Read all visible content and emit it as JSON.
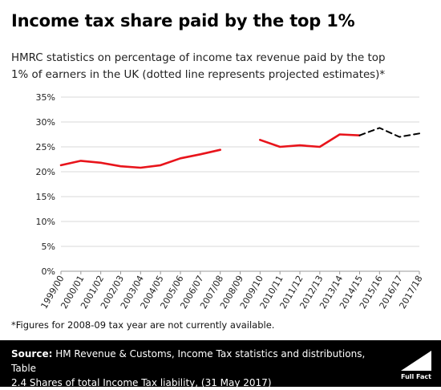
{
  "title": "Income tax share paid by the top 1%",
  "subtitle": [
    "HMRC statistics on percentage of income tax revenue paid by the top",
    "1% of earners in the UK (dotted line represents projected estimates)*"
  ],
  "footnote": "*Figures for 2008-09 tax year are not currently available.",
  "source": {
    "label": "Source:",
    "lines": [
      "HM Revenue & Customs, Income Tax statistics and distributions, Table",
      "2.4 Shares of total Income Tax liability, (31 May 2017)"
    ]
  },
  "brand": {
    "name": "Full Fact"
  },
  "colors": {
    "actual": "#e8141b",
    "projected": "#000000",
    "grid": "#d9d9d9",
    "axis": "#999999"
  },
  "chart_data": {
    "type": "line",
    "title": "",
    "xlabel": "",
    "ylabel": "",
    "categories": [
      "1999/00",
      "2000/01",
      "2001/02",
      "2002/03",
      "2003/04",
      "2004/05",
      "2005/06",
      "2006/07",
      "2007/08",
      "2008/09",
      "2009/10",
      "2010/11",
      "2011/12",
      "2012/13",
      "2013/14",
      "2014/15",
      "2015/16",
      "2016/17",
      "2017/18"
    ],
    "ylim": [
      0,
      35
    ],
    "yticks": [
      0,
      5,
      10,
      15,
      20,
      25,
      30,
      35
    ],
    "ytick_labels": [
      "0%",
      "5%",
      "10%",
      "15%",
      "20%",
      "25%",
      "30%",
      "35%"
    ],
    "grid": true,
    "legend": "none",
    "series": [
      {
        "style": "solid",
        "color": "#e8141b",
        "values": [
          21.3,
          22.2,
          21.8,
          21.1,
          20.8,
          21.3,
          22.7,
          23.5,
          24.4,
          null,
          26.4,
          25.0,
          25.3,
          25.0,
          27.5,
          27.3,
          null,
          null,
          null
        ]
      },
      {
        "style": "dashed",
        "color": "#000000",
        "values": [
          null,
          null,
          null,
          null,
          null,
          null,
          null,
          null,
          null,
          null,
          null,
          null,
          null,
          null,
          null,
          27.3,
          28.8,
          27.0,
          27.7
        ]
      }
    ]
  }
}
